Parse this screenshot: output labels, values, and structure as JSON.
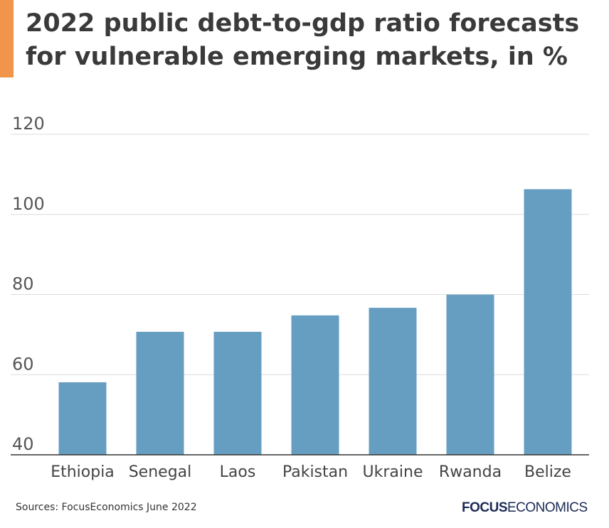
{
  "chart_data": {
    "type": "bar",
    "title": "2022 public debt-to-gdp ratio forecasts for vulnerable emerging markets, in %",
    "categories": [
      "Ethiopia",
      "Senegal",
      "Laos",
      "Pakistan",
      "Ukraine",
      "Rwanda",
      "Belize"
    ],
    "values": [
      58.1,
      70.7,
      70.7,
      74.8,
      76.7,
      80.0,
      106.3
    ],
    "ylim": [
      40,
      120
    ],
    "yticks": [
      40,
      60,
      80,
      100,
      120
    ],
    "xlabel": "",
    "ylabel": "",
    "grid": true,
    "bar_color": "#669ec1"
  },
  "source": "Sources: FocusEconomics June 2022",
  "logo": {
    "bold": "FOCUS",
    "light": "ECONOMICS"
  },
  "accent_color": "#f0954a"
}
